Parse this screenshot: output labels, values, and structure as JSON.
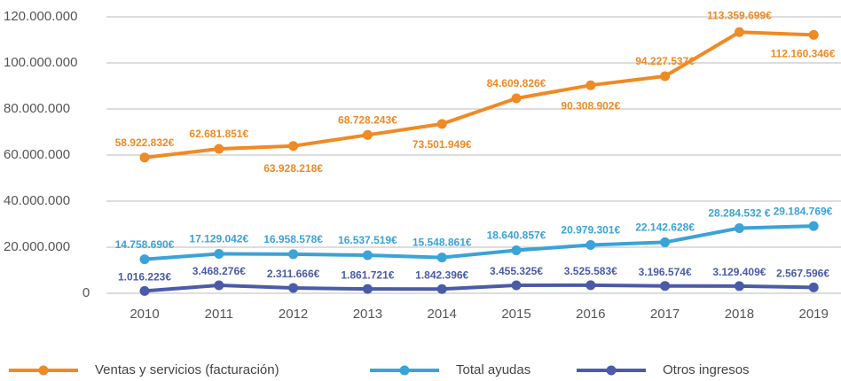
{
  "chart_data": {
    "type": "line",
    "categories": [
      "2010",
      "2011",
      "2012",
      "2013",
      "2014",
      "2015",
      "2016",
      "2017",
      "2018",
      "2019"
    ],
    "series": [
      {
        "name": "Ventas y servicios (facturación)",
        "color": "#f08a24",
        "values": [
          58922832,
          62681851,
          63928218,
          68728243,
          73501949,
          84609826,
          90308902,
          94227537,
          113359699,
          112160346
        ],
        "value_labels": [
          "58.922.832€",
          "62.681.851€",
          "63.928.218€",
          "68.728.243€",
          "73.501.949€",
          "84.609.826€",
          "90.308.902€",
          "94.227.537€",
          "113.359.699€",
          "112.160.346€"
        ]
      },
      {
        "name": "Total ayudas",
        "color": "#3aa3d8",
        "values": [
          14758690,
          17129042,
          16958578,
          16537519,
          15548861,
          18640857,
          20979301,
          22142628,
          28284532,
          29184769
        ],
        "value_labels": [
          "14.758.690€",
          "17.129.042€",
          "16.958.578€",
          "16.537.519€",
          "15.548.861€",
          "18.640.857€",
          "20.979.301€",
          "22.142.628€",
          "28.284.532 €",
          "29.184.769€"
        ]
      },
      {
        "name": "Otros ingresos",
        "color": "#4a5ba8",
        "values": [
          1016223,
          3468276,
          2311666,
          1861721,
          1842396,
          3455325,
          3525583,
          3196574,
          3129409,
          2567596
        ],
        "value_labels": [
          "1.016.223€",
          "3.468.276€",
          "2.311.666€",
          "1.861.721€",
          "1.842.396€",
          "3.455.325€",
          "3.525.583€",
          "3.196.574€",
          "3.129.409€",
          "2.567.596€"
        ]
      }
    ],
    "ylim": [
      0,
      120000000
    ],
    "yticks": [
      0,
      {
        "value": 20000000,
        "label": "20.000.000"
      },
      {
        "value": 40000000,
        "label": "40.000.000"
      },
      {
        "value": 60000000,
        "label": "60.000.000"
      },
      {
        "value": 80000000,
        "label": "80.000.000"
      },
      {
        "value": 100000000,
        "label": "100.000.000"
      },
      {
        "value": 120000000,
        "label": "120.000.000"
      }
    ],
    "grid": true,
    "legend": "bottom"
  }
}
